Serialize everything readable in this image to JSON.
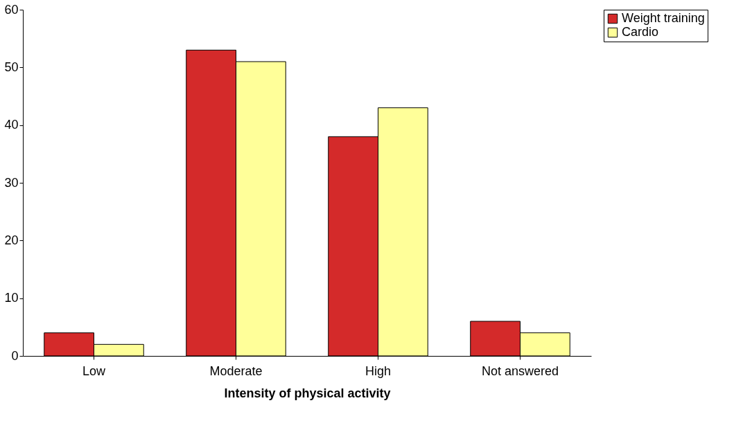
{
  "chart_data": {
    "type": "bar",
    "xlabel": "Intensity of physical activity",
    "categories": [
      "Low",
      "Moderate",
      "High",
      "Not answered"
    ],
    "series": [
      {
        "name": "Weight training",
        "color": "#d42a2a",
        "values": [
          4,
          53,
          38,
          6
        ]
      },
      {
        "name": "Cardio",
        "color": "#ffff99",
        "values": [
          2,
          51,
          43,
          4
        ]
      }
    ],
    "ylim": [
      0,
      60
    ],
    "yticks": [
      0,
      10,
      20,
      30,
      40,
      50,
      60
    ],
    "grid": false,
    "legend": "right"
  }
}
